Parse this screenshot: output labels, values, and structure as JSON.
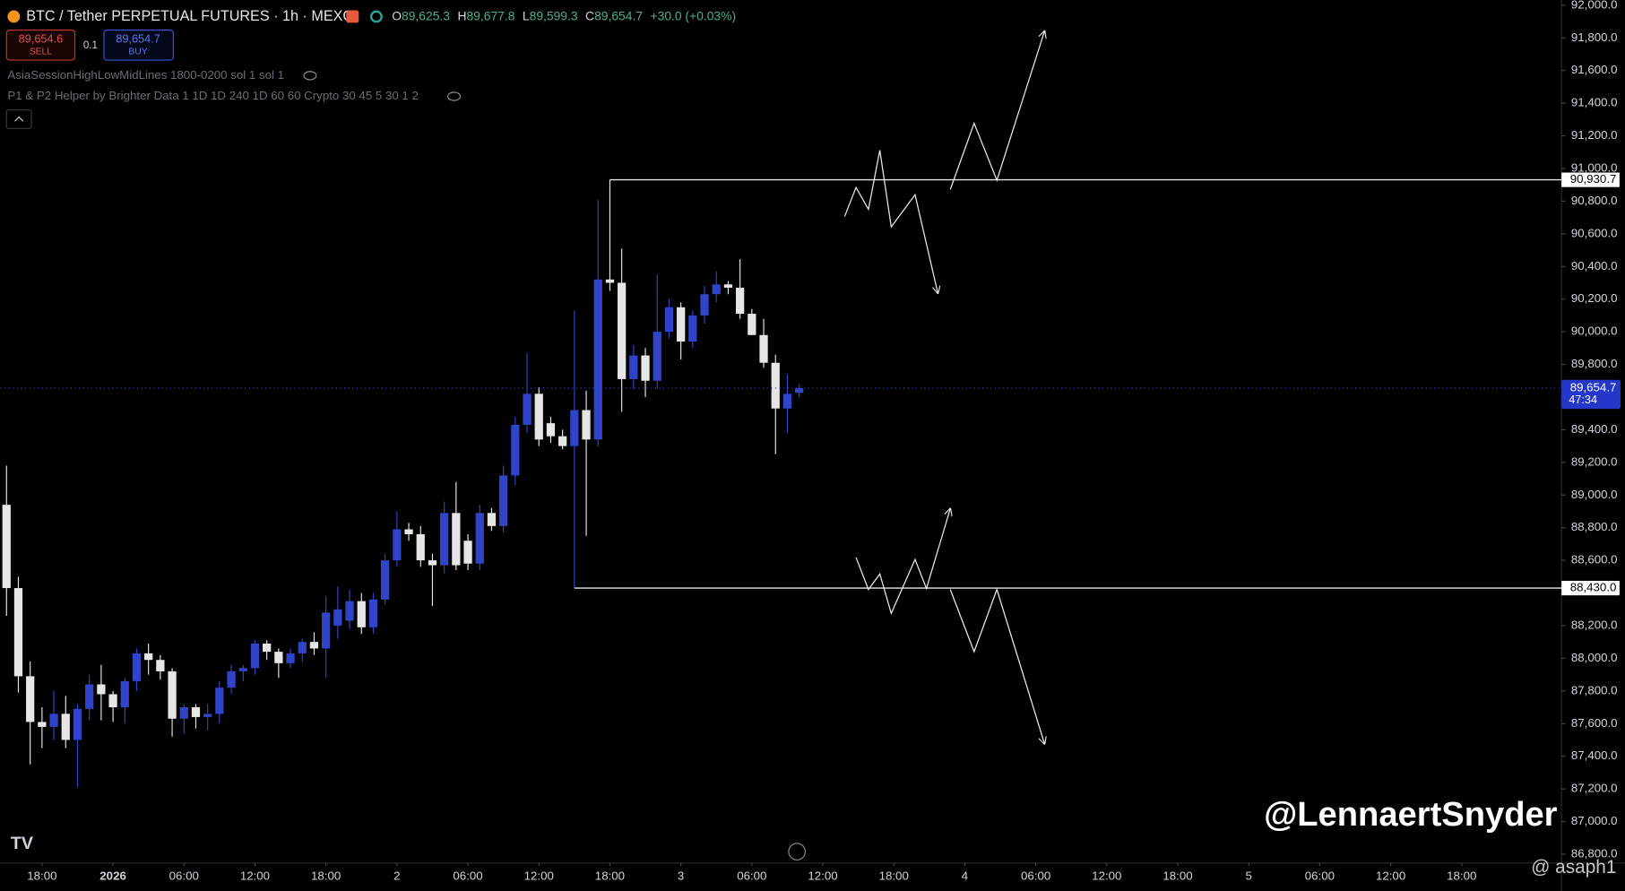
{
  "header": {
    "title": "BTC / Tether PERPETUAL FUTURES · 1h · MEXC",
    "ohlc_legend": [
      {
        "key": "O",
        "value": "89,625.3"
      },
      {
        "key": "H",
        "value": "89,677.8"
      },
      {
        "key": "L",
        "value": "89,599.3"
      },
      {
        "key": "C",
        "value": "89,654.7"
      }
    ],
    "change": "+30.0 (+0.03%)"
  },
  "trade_panel": {
    "sell_price": "89,654.6",
    "sell": "SELL",
    "quantity": "0.1",
    "buy_price": "89,654.7",
    "buy": "BUY"
  },
  "indicators": [
    "AsiaSessionHighLowMidLines 1800-0200 sol 1 sol 1",
    "P1 & P2 Helper by Brighter Data 1 1D 1D 240 1D 60 60 Crypto 30 45 5 30 1 2"
  ],
  "watermark": "@LennaertSnyder",
  "footer_mark": "@ asaph1",
  "chart_data": {
    "type": "candlestick",
    "up_color": "#2f44c8",
    "down_color": "#e6e6e6",
    "open": [
      88940,
      88430,
      87890,
      87610,
      87580,
      87660,
      87500,
      87690,
      87840,
      87780,
      87700,
      87860,
      88030,
      87990,
      87920,
      87630,
      87700,
      87640,
      87660,
      87820,
      87920,
      87940,
      88090,
      88040,
      87970,
      88030,
      88100,
      88060,
      88200,
      88230,
      88350,
      88190,
      88360,
      88600,
      88790,
      88760,
      88600,
      88570,
      88890,
      88720,
      88580,
      88890,
      88810,
      89120,
      89430,
      89620,
      89440,
      89360,
      89300,
      89520,
      89340,
      90320,
      90300,
      89710,
      89855,
      89700,
      90000,
      90150,
      89940,
      90100,
      90230,
      90290,
      90270,
      90110,
      89980,
      89810,
      89530,
      89625.3
    ],
    "high": [
      89180,
      88500,
      87980,
      87700,
      87800,
      87770,
      87720,
      87900,
      87960,
      87800,
      87880,
      88060,
      88090,
      88020,
      87940,
      87720,
      87720,
      87720,
      87860,
      87960,
      87960,
      88110,
      88110,
      88060,
      88060,
      88120,
      88160,
      88380,
      88440,
      88420,
      88400,
      88400,
      88640,
      88900,
      88830,
      88810,
      88640,
      88960,
      89080,
      88760,
      88940,
      88920,
      89180,
      89480,
      89870,
      89660,
      89480,
      89400,
      90130,
      89640,
      90807,
      90930.7,
      90510,
      89920,
      89900,
      90350,
      90200,
      90180,
      90130,
      90280,
      90370,
      90310,
      90445,
      90140,
      90080,
      89860,
      89740,
      89677.8
    ],
    "low": [
      88260,
      87790,
      87350,
      87450,
      87500,
      87450,
      87210,
      87620,
      87620,
      87610,
      87600,
      87800,
      87900,
      87870,
      87520,
      87540,
      87570,
      87560,
      87600,
      87780,
      87860,
      87900,
      87990,
      87880,
      87940,
      87980,
      88020,
      87880,
      88120,
      88180,
      88150,
      88150,
      88330,
      88560,
      88720,
      88560,
      88320,
      88520,
      88540,
      88540,
      88540,
      88780,
      88770,
      89060,
      89380,
      89300,
      89320,
      89280,
      88430,
      88750,
      89300,
      90250,
      89510,
      89650,
      89600,
      89650,
      89960,
      89830,
      89900,
      90050,
      90180,
      90230,
      90080,
      89980,
      89780,
      89250,
      89380,
      89599.3
    ],
    "close": [
      88430,
      87890,
      87610,
      87580,
      87660,
      87500,
      87690,
      87840,
      87780,
      87700,
      87860,
      88030,
      87990,
      87920,
      87630,
      87700,
      87640,
      87660,
      87820,
      87920,
      87940,
      88090,
      88040,
      87970,
      88030,
      88100,
      88060,
      88280,
      88300,
      88350,
      88190,
      88360,
      88600,
      88790,
      88760,
      88600,
      88570,
      88890,
      88570,
      88580,
      88890,
      88810,
      89120,
      89430,
      89620,
      89340,
      89360,
      89300,
      89520,
      89340,
      90320,
      90300,
      89710,
      89855,
      89700,
      90000,
      90150,
      89940,
      90100,
      90230,
      90290,
      90270,
      90110,
      89980,
      89810,
      89530,
      89620,
      89654.7
    ],
    "ylim": [
      86746,
      92032
    ],
    "yticks": [
      {
        "value": 86800,
        "label": "86,800.0"
      },
      {
        "value": 87000,
        "label": "87,000.0"
      },
      {
        "value": 87200,
        "label": "87,200.0"
      },
      {
        "value": 87400,
        "label": "87,400.0"
      },
      {
        "value": 87600,
        "label": "87,600.0"
      },
      {
        "value": 87800,
        "label": "87,800.0"
      },
      {
        "value": 88000,
        "label": "88,000.0"
      },
      {
        "value": 88200,
        "label": "88,200.0"
      },
      {
        "value": 88600,
        "label": "88,600.0"
      },
      {
        "value": 88800,
        "label": "88,800.0"
      },
      {
        "value": 89000,
        "label": "89,000.0"
      },
      {
        "value": 89200,
        "label": "89,200.0"
      },
      {
        "value": 89400,
        "label": "89,400.0"
      },
      {
        "value": 89800,
        "label": "89,800.0"
      },
      {
        "value": 90000,
        "label": "90,000.0"
      },
      {
        "value": 90200,
        "label": "90,200.0"
      },
      {
        "value": 90400,
        "label": "90,400.0"
      },
      {
        "value": 90600,
        "label": "90,600.0"
      },
      {
        "value": 90800,
        "label": "90,800.0"
      },
      {
        "value": 91000,
        "label": "91,000.0"
      },
      {
        "value": 91200,
        "label": "91,200.0"
      },
      {
        "value": 91400,
        "label": "91,400.0"
      },
      {
        "value": 91600,
        "label": "91,600.0"
      },
      {
        "value": 91800,
        "label": "91,800.0"
      },
      {
        "value": 92000,
        "label": "92,000.0"
      }
    ],
    "xticks": [
      {
        "value": 3,
        "label": "18:00"
      },
      {
        "value": 9,
        "label": "2026"
      },
      {
        "value": 15,
        "label": "06:00"
      },
      {
        "value": 21,
        "label": "12:00"
      },
      {
        "value": 27,
        "label": "18:00"
      },
      {
        "value": 33,
        "label": "2"
      },
      {
        "value": 39,
        "label": "06:00"
      },
      {
        "value": 45,
        "label": "12:00"
      },
      {
        "value": 51,
        "label": "18:00"
      },
      {
        "value": 57,
        "label": "3"
      },
      {
        "value": 63,
        "label": "06:00"
      },
      {
        "value": 69,
        "label": "12:00"
      },
      {
        "value": 75,
        "label": "18:00"
      },
      {
        "value": 81,
        "label": "4"
      },
      {
        "value": 87,
        "label": "06:00"
      },
      {
        "value": 93,
        "label": "12:00"
      },
      {
        "value": 99,
        "label": "18:00"
      },
      {
        "value": 105,
        "label": "5"
      },
      {
        "value": 111,
        "label": "06:00"
      },
      {
        "value": 117,
        "label": "12:00"
      },
      {
        "value": 123,
        "label": "18:00"
      }
    ],
    "levels": [
      {
        "value": 90930.7,
        "label": "90,930.7"
      },
      {
        "value": 88430,
        "label": "88,430.0"
      }
    ],
    "last_price": {
      "value": 89654.7,
      "label": "89,654.7",
      "countdown": "47:34"
    },
    "grid": false
  }
}
